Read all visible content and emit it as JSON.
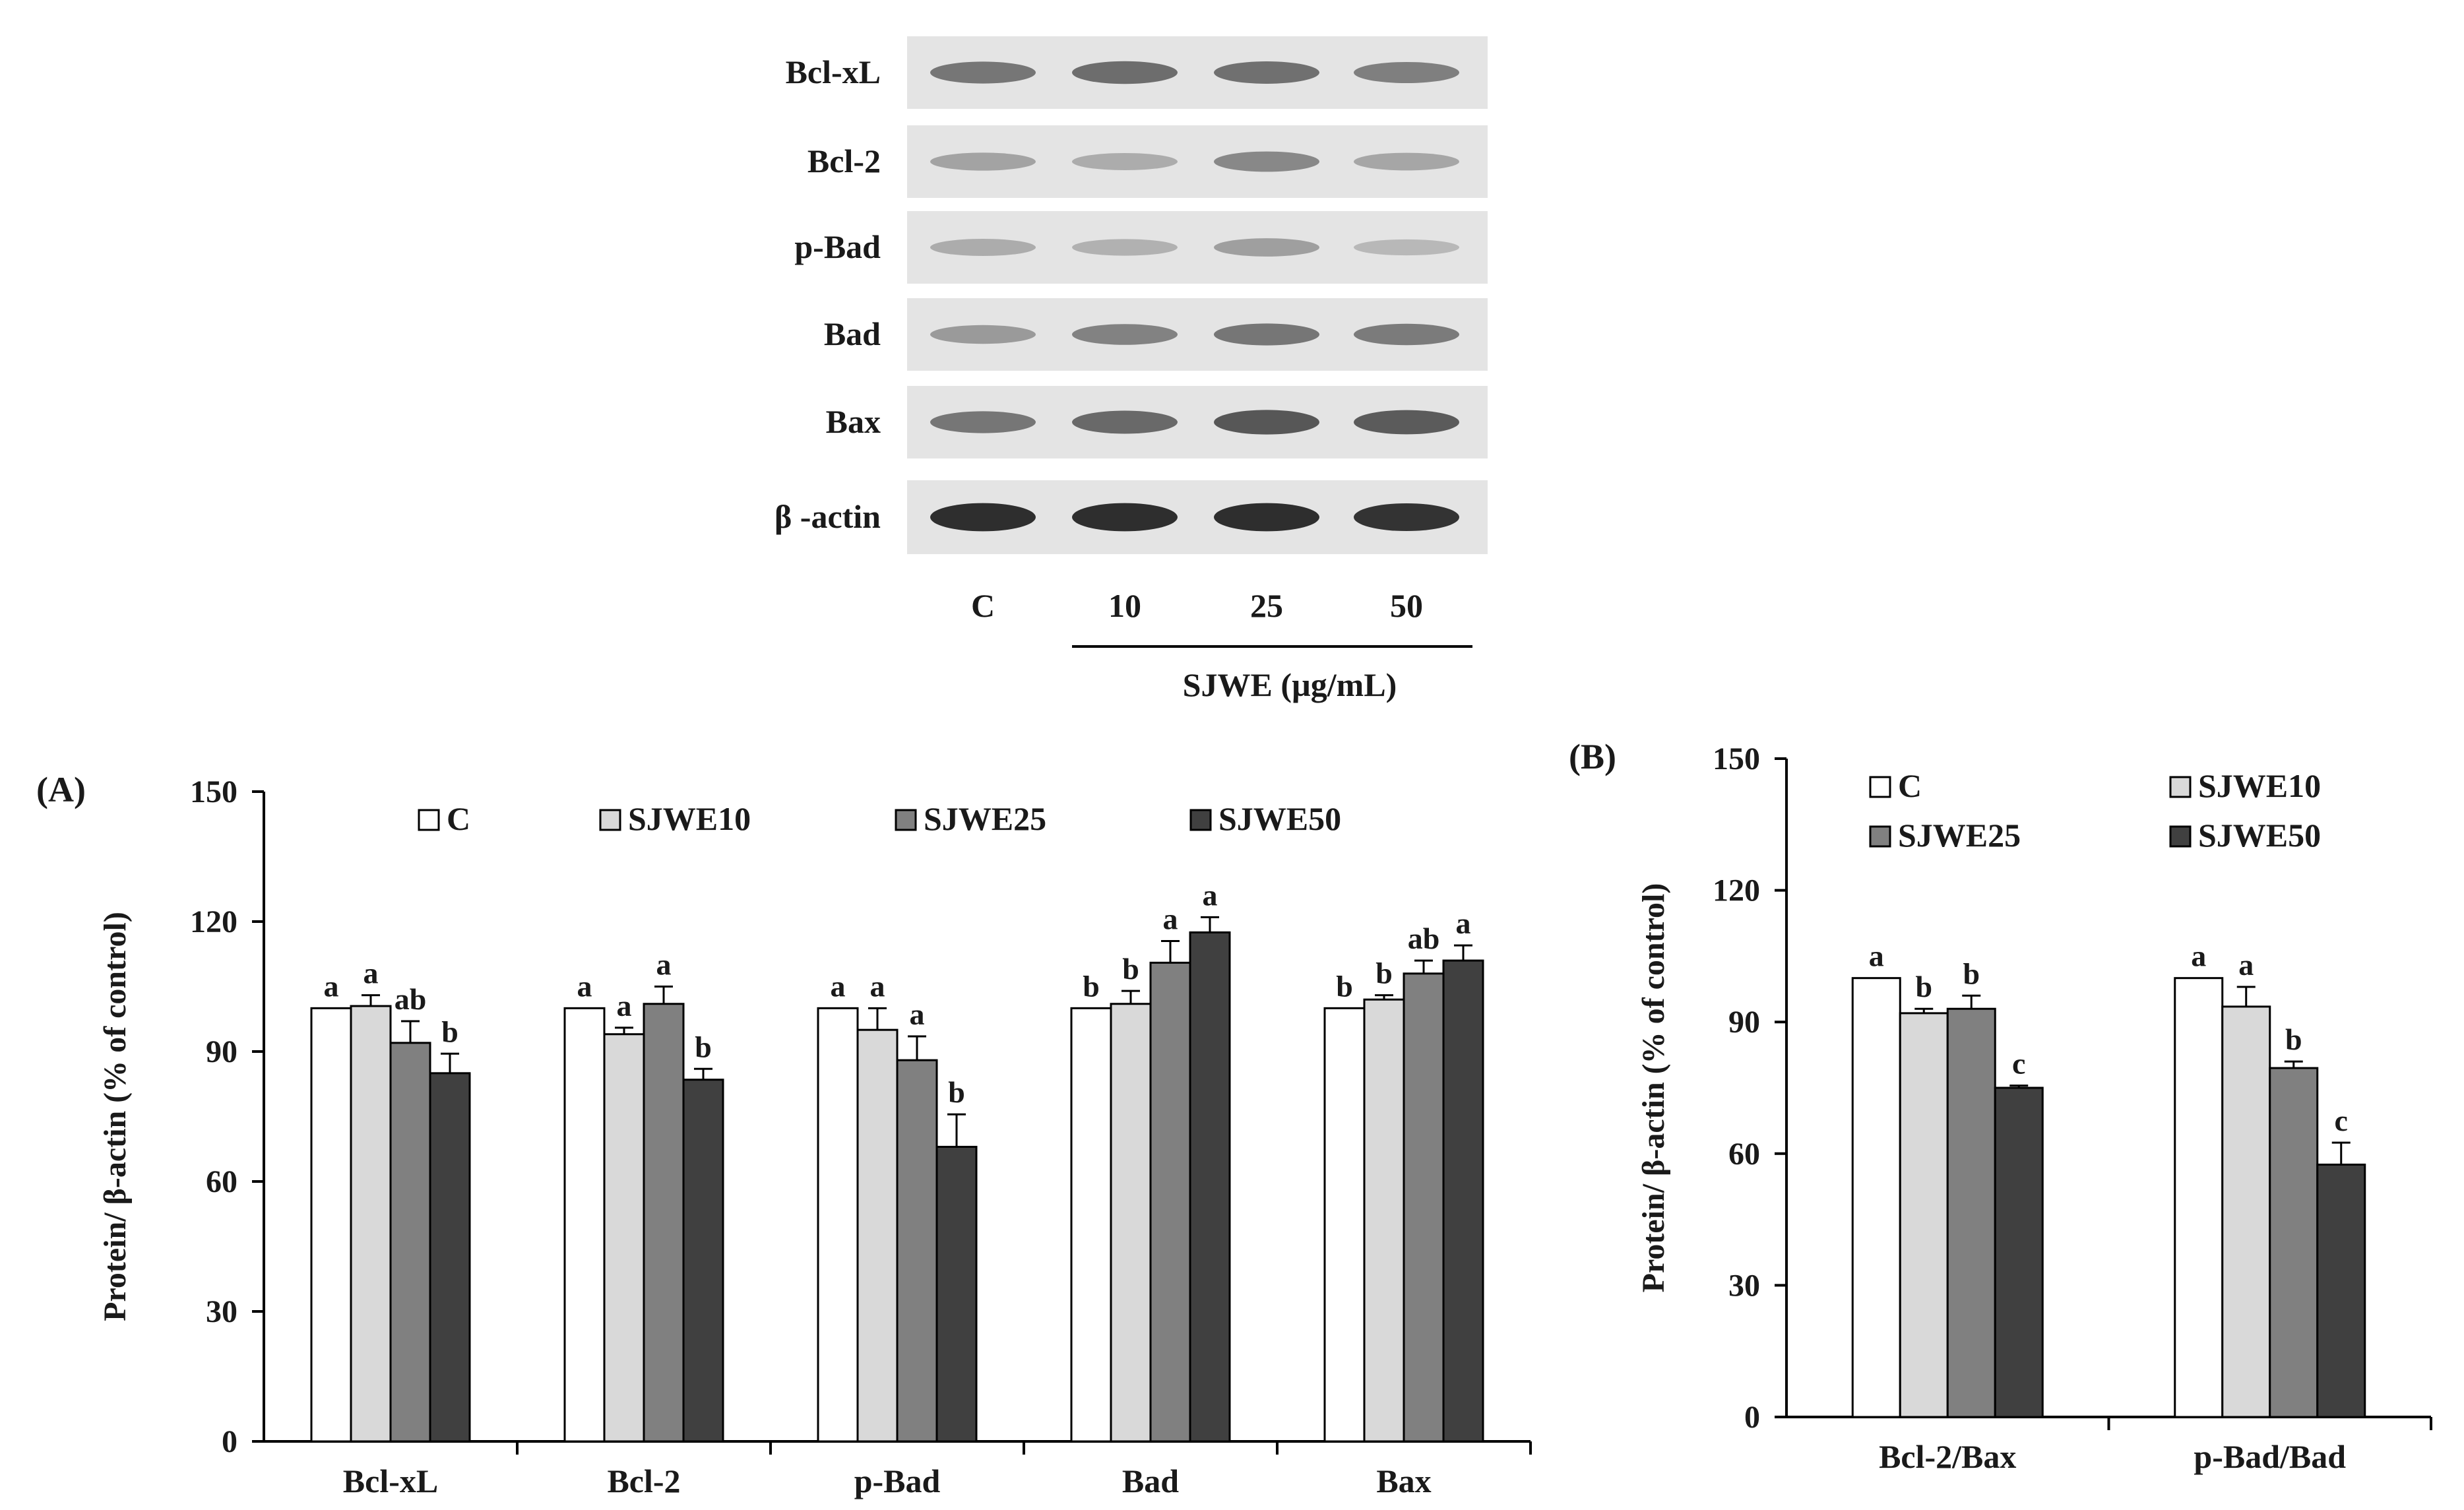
{
  "blot": {
    "proteins": [
      "Bcl-xL",
      "Bcl-2",
      "p-Bad",
      "Bad",
      "Bax",
      "β -actin"
    ],
    "lanes": [
      "C",
      "10",
      "25",
      "50"
    ],
    "treatment_label": "SJWE (µg/mL)"
  },
  "chart_data": [
    {
      "type": "bar",
      "panel_label": "(A)",
      "title": "",
      "xlabel": "",
      "ylabel": "Protein/ β-actin (% of control)",
      "ylim": [
        0,
        150
      ],
      "yticks": [
        "0",
        "30",
        "60",
        "90",
        "120",
        "150"
      ],
      "grid": false,
      "legend": "top, single row",
      "categories": [
        "Bcl-xL",
        "Bcl-2",
        "p-Bad",
        "Bad",
        "Bax"
      ],
      "series": [
        {
          "name": "C",
          "color": "#ffffff",
          "values": [
            100,
            100,
            100,
            100,
            100
          ],
          "errors": [
            0,
            0,
            0,
            0,
            0
          ],
          "letters": [
            "a",
            "a",
            "a",
            "b",
            "b"
          ]
        },
        {
          "name": "SJWE10",
          "color": "#d9d9d9",
          "values": [
            100.5,
            94,
            95,
            101,
            102
          ],
          "errors": [
            2.5,
            1.5,
            5,
            3,
            1
          ],
          "letters": [
            "a",
            "a",
            "a",
            "b",
            "b"
          ]
        },
        {
          "name": "SJWE25",
          "color": "#808080",
          "values": [
            92,
            101,
            88,
            110.5,
            108
          ],
          "errors": [
            5,
            4,
            5.5,
            5,
            3
          ],
          "letters": [
            "ab",
            "a",
            "a",
            "a",
            "ab"
          ]
        },
        {
          "name": "SJWE50",
          "color": "#404040",
          "values": [
            85,
            83.5,
            68,
            117.5,
            111
          ],
          "errors": [
            4.5,
            2.5,
            7.5,
            3.5,
            3.5
          ],
          "letters": [
            "b",
            "b",
            "b",
            "a",
            "a"
          ]
        }
      ]
    },
    {
      "type": "bar",
      "panel_label": "(B)",
      "title": "",
      "xlabel": "",
      "ylabel": "Protein/ β-actin (% of control)",
      "ylim": [
        0,
        150
      ],
      "yticks": [
        "0",
        "30",
        "60",
        "90",
        "120",
        "150"
      ],
      "grid": false,
      "legend": "top, two rows",
      "categories": [
        "Bcl-2/Bax",
        "p-Bad/Bad"
      ],
      "series": [
        {
          "name": "C",
          "color": "#ffffff",
          "values": [
            100,
            100
          ],
          "errors": [
            0,
            0
          ],
          "letters": [
            "a",
            "a"
          ]
        },
        {
          "name": "SJWE10",
          "color": "#d9d9d9",
          "values": [
            92,
            93.5
          ],
          "errors": [
            1,
            4.5
          ],
          "letters": [
            "b",
            "a"
          ]
        },
        {
          "name": "SJWE25",
          "color": "#808080",
          "values": [
            93,
            79.5
          ],
          "errors": [
            3,
            1.5
          ],
          "letters": [
            "b",
            "b"
          ]
        },
        {
          "name": "SJWE50",
          "color": "#404040",
          "values": [
            75,
            57.5
          ],
          "errors": [
            0.5,
            5
          ],
          "letters": [
            "c",
            "c"
          ]
        }
      ]
    }
  ]
}
